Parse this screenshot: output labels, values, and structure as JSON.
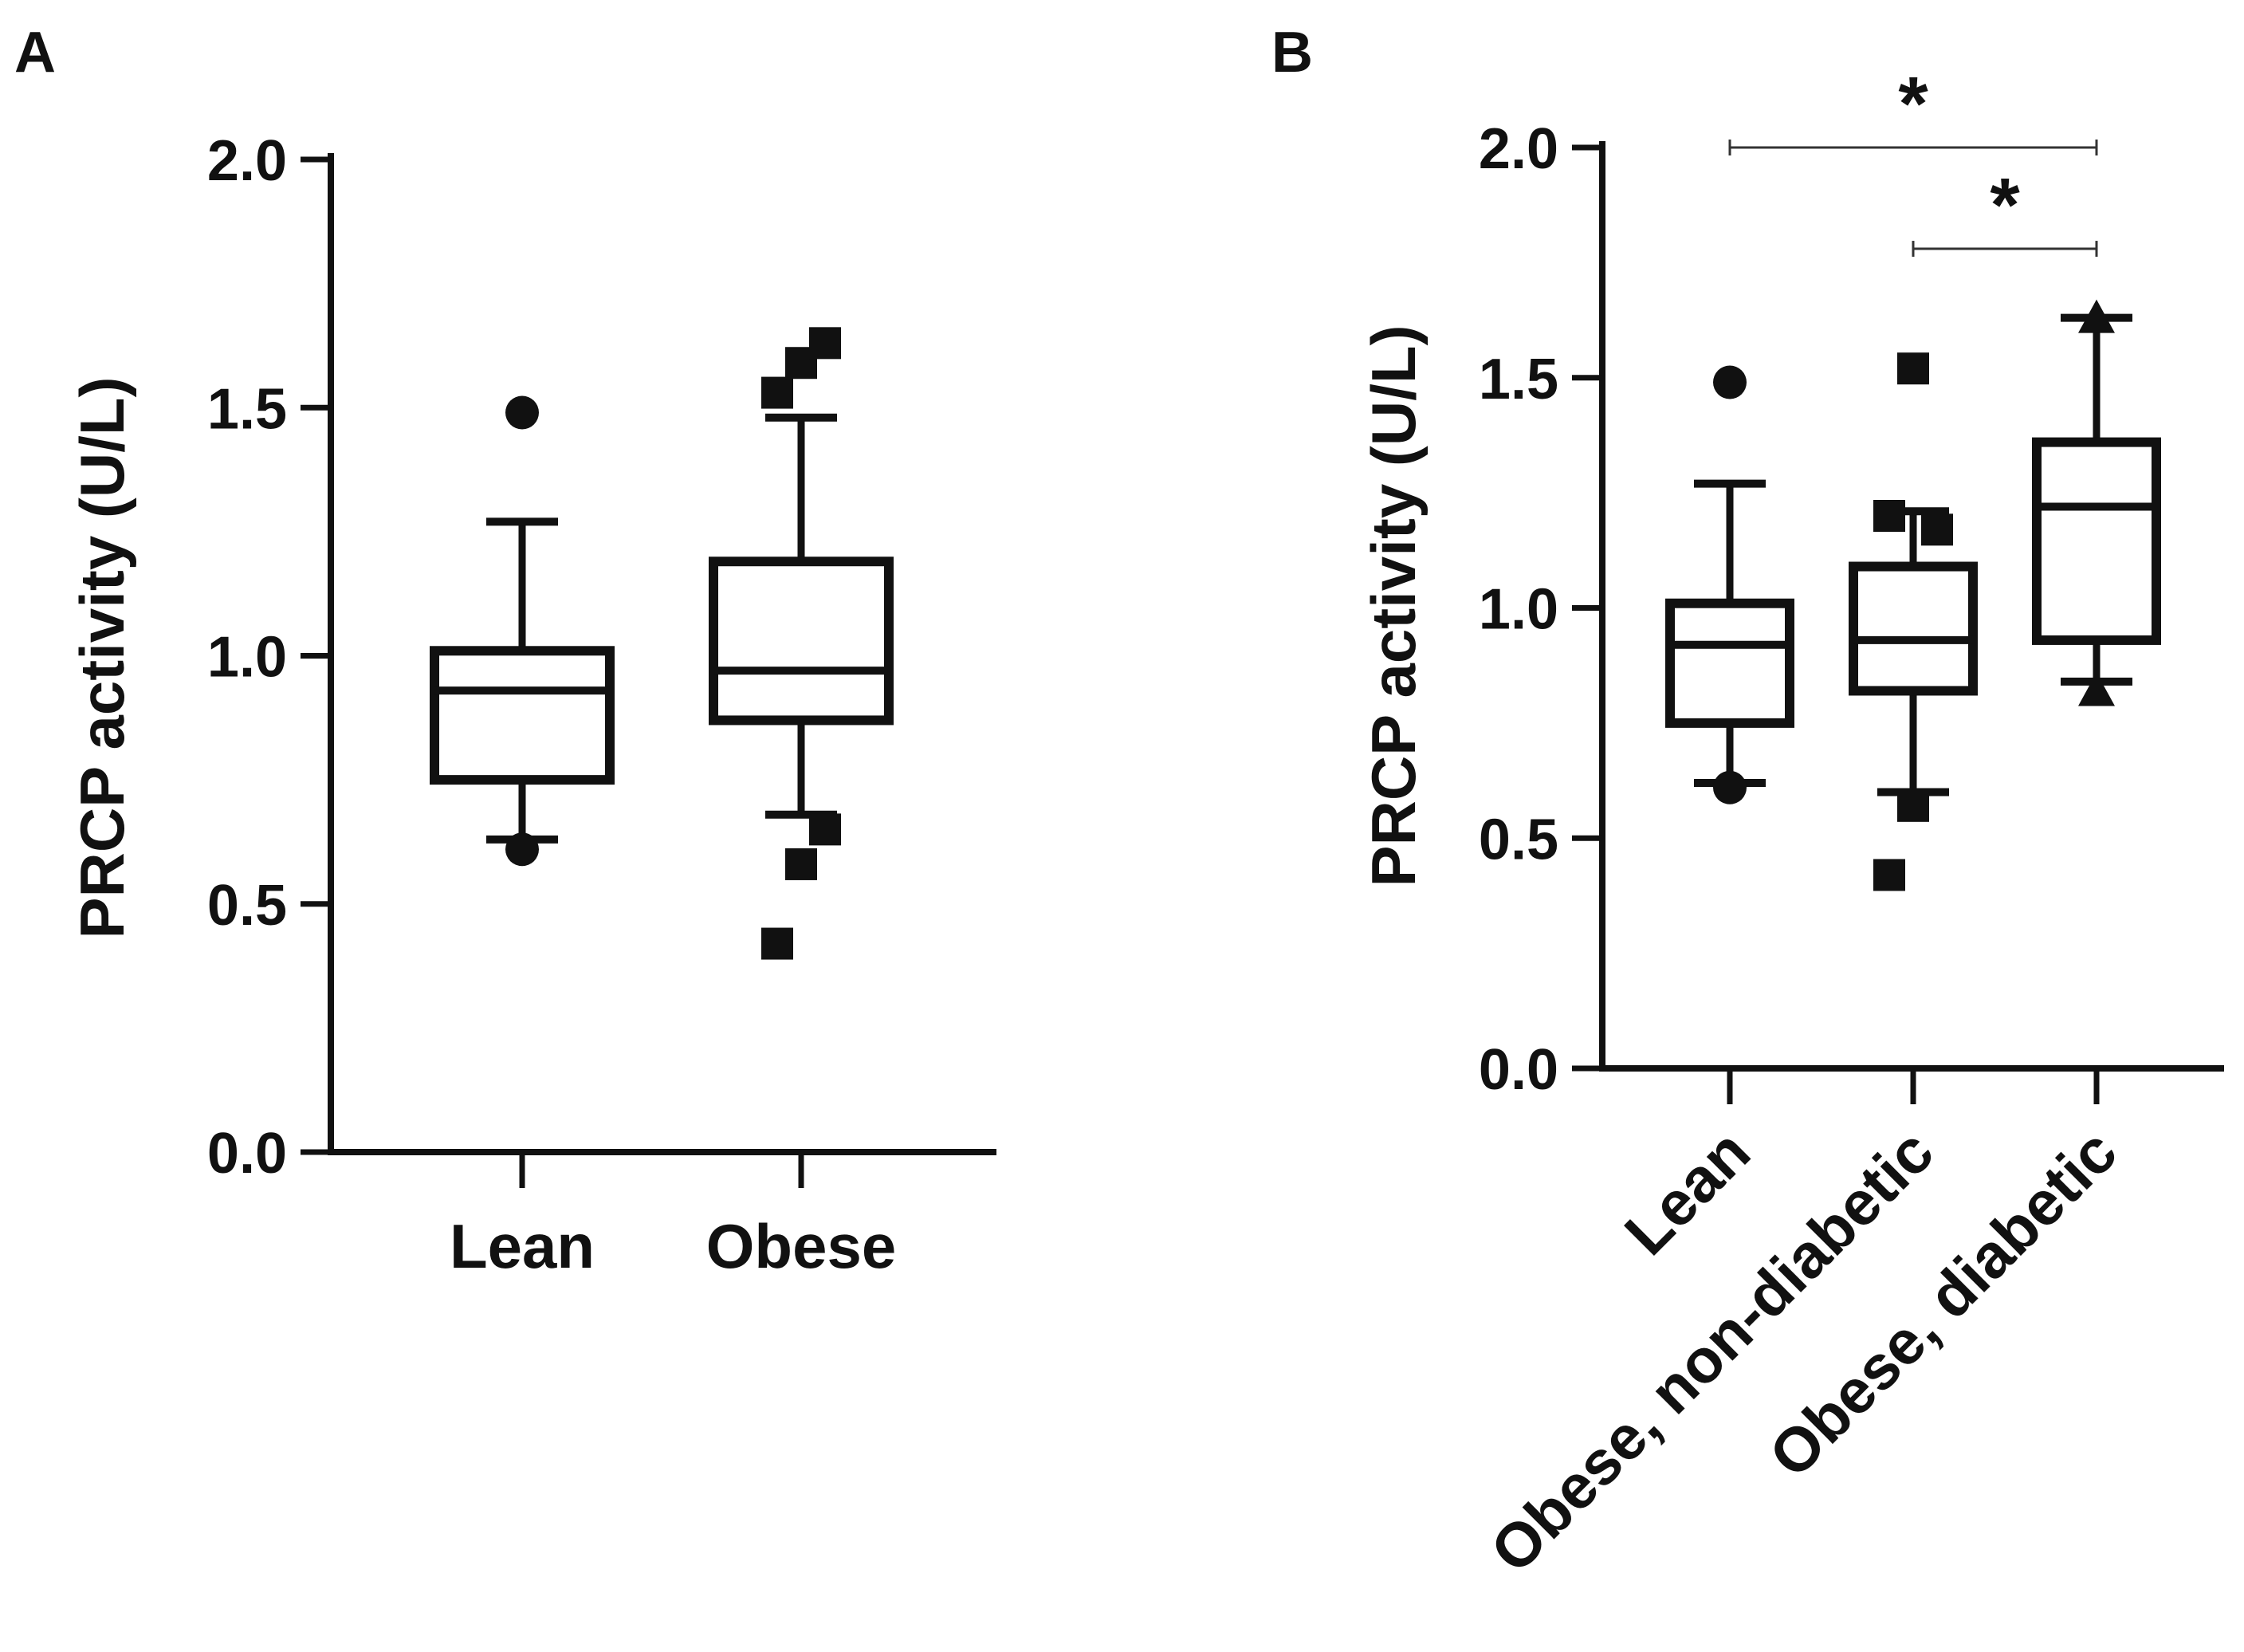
{
  "chart_data": [
    {
      "panel": "A",
      "type": "box",
      "title": "",
      "xlabel": "",
      "ylabel": "PRCP activity (U/L)",
      "ylim": [
        0,
        2.0
      ],
      "yticks": [
        "0.0",
        "0.5",
        "1.0",
        "1.5",
        "2.0"
      ],
      "categories": [
        "Lean",
        "Obese"
      ],
      "boxes": [
        {
          "name": "Lean",
          "marker": "circle",
          "whisker_low": 0.63,
          "q1": 0.75,
          "median": 0.93,
          "q3": 1.01,
          "whisker_high": 1.27,
          "outliers": [
            0.61,
            1.49
          ]
        },
        {
          "name": "Obese",
          "marker": "square",
          "whisker_low": 0.68,
          "q1": 0.87,
          "median": 0.97,
          "q3": 1.19,
          "whisker_high": 1.48,
          "outliers": [
            0.42,
            0.58,
            0.65,
            1.53,
            1.59,
            1.63
          ]
        }
      ]
    },
    {
      "panel": "B",
      "type": "box",
      "title": "",
      "xlabel": "",
      "ylabel": "PRCP activity (U/L)",
      "ylim": [
        0,
        2.0
      ],
      "yticks": [
        "0.0",
        "0.5",
        "1.0",
        "1.5",
        "2.0"
      ],
      "categories": [
        "Lean",
        "Obese, non-diabetic",
        "Obese, diabetic"
      ],
      "boxes": [
        {
          "name": "Lean",
          "marker": "circle",
          "whisker_low": 0.62,
          "q1": 0.75,
          "median": 0.92,
          "q3": 1.01,
          "whisker_high": 1.27,
          "outliers": [
            0.61,
            1.49
          ]
        },
        {
          "name": "Obese, non-diabetic",
          "marker": "square",
          "whisker_low": 0.6,
          "q1": 0.82,
          "median": 0.93,
          "q3": 1.09,
          "whisker_high": 1.21,
          "outliers": [
            0.42,
            0.57,
            1.17,
            1.2,
            1.52
          ]
        },
        {
          "name": "Obese, diabetic",
          "marker": "triangle",
          "whisker_low": 0.84,
          "q1": 0.93,
          "median": 1.22,
          "q3": 1.36,
          "whisker_high": 1.63,
          "outliers": [
            0.82,
            1.63
          ]
        }
      ],
      "significance": [
        {
          "from": "Lean",
          "to": "Obese, diabetic",
          "y": 2.0,
          "label": "*"
        },
        {
          "from": "Obese, non-diabetic",
          "to": "Obese, diabetic",
          "y": 1.78,
          "label": "*"
        }
      ]
    }
  ]
}
